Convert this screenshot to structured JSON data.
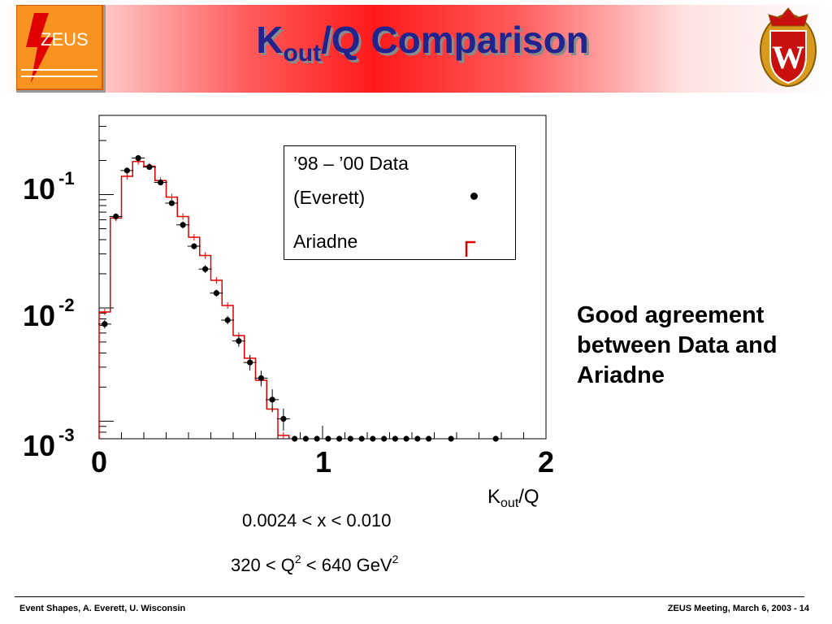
{
  "header": {
    "title_main": "K",
    "title_sub": "out",
    "title_rest": "/Q Comparison",
    "zeus_logo_text": "ZEUS",
    "uw_logo_text": "W"
  },
  "chart_data": {
    "type": "scatter",
    "x_axis": {
      "title_main": "K",
      "title_sub": "out",
      "title_rest": "/Q",
      "range": [
        0,
        2
      ],
      "tick_labels": [
        "0",
        "1",
        "2"
      ]
    },
    "y_axis": {
      "scale": "log",
      "range": [
        0.0007,
        0.5
      ],
      "tick_labels": [
        {
          "base": "10",
          "exp": "-1",
          "value": 0.1
        },
        {
          "base": "10",
          "exp": "-2",
          "value": 0.01
        },
        {
          "base": "10",
          "exp": "-3",
          "value": 0.001
        }
      ]
    },
    "legend": {
      "placement": "top-right",
      "entries": [
        "’98 – ’00 Data",
        "(Everett)",
        "Ariadne"
      ]
    },
    "series": [
      {
        "name": "’98 – ’00 Data (Everett)",
        "style": "points-with-errors",
        "color": "#000000",
        "points": [
          {
            "x": 0.025,
            "y": 0.0072,
            "err": 0.0004
          },
          {
            "x": 0.075,
            "y": 0.064,
            "err": 0.002
          },
          {
            "x": 0.125,
            "y": 0.163,
            "err": 0.004
          },
          {
            "x": 0.175,
            "y": 0.21,
            "err": 0.005
          },
          {
            "x": 0.225,
            "y": 0.175,
            "err": 0.004
          },
          {
            "x": 0.275,
            "y": 0.128,
            "err": 0.003
          },
          {
            "x": 0.325,
            "y": 0.084,
            "err": 0.002
          },
          {
            "x": 0.375,
            "y": 0.054,
            "err": 0.002
          },
          {
            "x": 0.425,
            "y": 0.035,
            "err": 0.001
          },
          {
            "x": 0.475,
            "y": 0.022,
            "err": 0.001
          },
          {
            "x": 0.525,
            "y": 0.0135,
            "err": 0.0005
          },
          {
            "x": 0.575,
            "y": 0.0078,
            "err": 0.0004
          },
          {
            "x": 0.625,
            "y": 0.0051,
            "err": 0.0004
          },
          {
            "x": 0.675,
            "y": 0.0033,
            "err": 0.0004
          },
          {
            "x": 0.725,
            "y": 0.0024,
            "err": 0.0003
          },
          {
            "x": 0.775,
            "y": 0.00155,
            "err": 0.0003
          },
          {
            "x": 0.825,
            "y": 0.00105,
            "err": 0.0002
          }
        ],
        "zero_points_x": [
          0.875,
          0.925,
          0.975,
          1.025,
          1.075,
          1.125,
          1.175,
          1.225,
          1.275,
          1.325,
          1.375,
          1.425,
          1.475,
          1.575,
          1.775
        ]
      },
      {
        "name": "Ariadne",
        "style": "step-histogram",
        "color": "#e00000",
        "bin_edges": [
          0,
          0.05,
          0.1,
          0.15,
          0.2,
          0.25,
          0.3,
          0.35,
          0.4,
          0.45,
          0.5,
          0.55,
          0.6,
          0.65,
          0.7,
          0.75,
          0.8,
          0.85
        ],
        "values": [
          0.0092,
          0.062,
          0.145,
          0.196,
          0.178,
          0.133,
          0.095,
          0.064,
          0.042,
          0.029,
          0.0175,
          0.0105,
          0.0057,
          0.0036,
          0.0023,
          0.00128,
          0.00075
        ]
      }
    ]
  },
  "cuts": {
    "x_range": "0.0024 < x < 0.010",
    "q2_prefix": "320 < Q",
    "q2_sup": "2",
    "q2_middle": " < 640 GeV",
    "q2_sup2": "2"
  },
  "note": "Good agreement between Data and Ariadne",
  "footer": {
    "left": "Event Shapes,  A. Everett,  U. Wisconsin",
    "right": "ZEUS Meeting, March 6, 2003 -  14"
  },
  "colors": {
    "title": "#23238e",
    "banner_red": "#ff1a1a",
    "data": "#000000",
    "mc": "#e00000"
  }
}
